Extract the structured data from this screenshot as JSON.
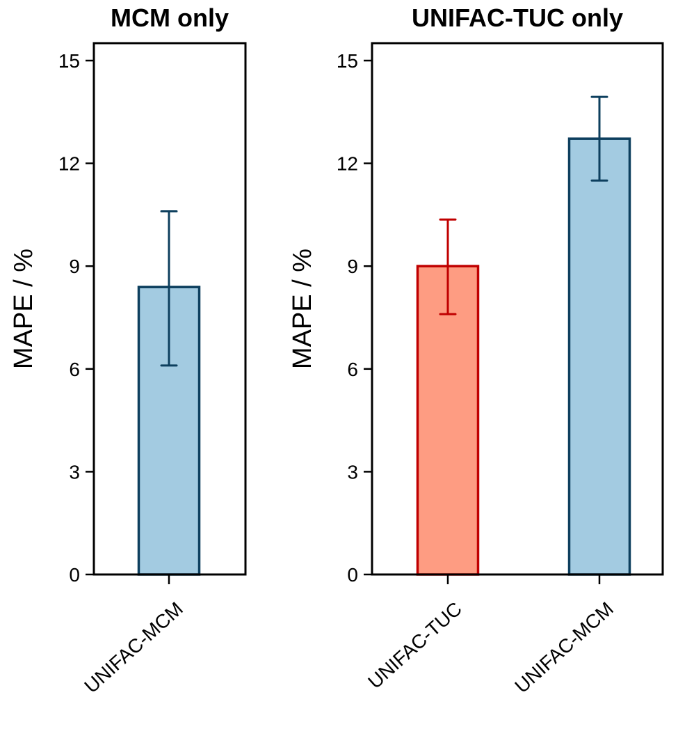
{
  "chart_data": [
    {
      "type": "bar",
      "title": "MCM only",
      "ylabel": "MAPE / %",
      "xlabel": "",
      "ylim": [
        0,
        15.5
      ],
      "yticks": [
        0,
        3,
        6,
        9,
        12,
        15
      ],
      "categories": [
        "UNIFAC-MCM"
      ],
      "values": [
        8.39
      ],
      "error_low": [
        6.1
      ],
      "error_high": [
        10.6
      ],
      "fill_colors": [
        "#a3cbe1"
      ],
      "edge_colors": [
        "#0d3f5e"
      ],
      "grid": false
    },
    {
      "type": "bar",
      "title": "UNIFAC-TUC only",
      "ylabel": "MAPE / %",
      "xlabel": "",
      "ylim": [
        0,
        15.5
      ],
      "yticks": [
        0,
        3,
        6,
        9,
        12,
        15
      ],
      "categories": [
        "UNIFAC-TUC",
        "UNIFAC-MCM"
      ],
      "values": [
        9.0,
        12.72
      ],
      "error_low": [
        7.6,
        11.5
      ],
      "error_high": [
        10.36,
        13.94
      ],
      "fill_colors": [
        "#fe9c82",
        "#a3cbe1"
      ],
      "edge_colors": [
        "#c00000",
        "#0d3f5e"
      ],
      "grid": false
    }
  ]
}
